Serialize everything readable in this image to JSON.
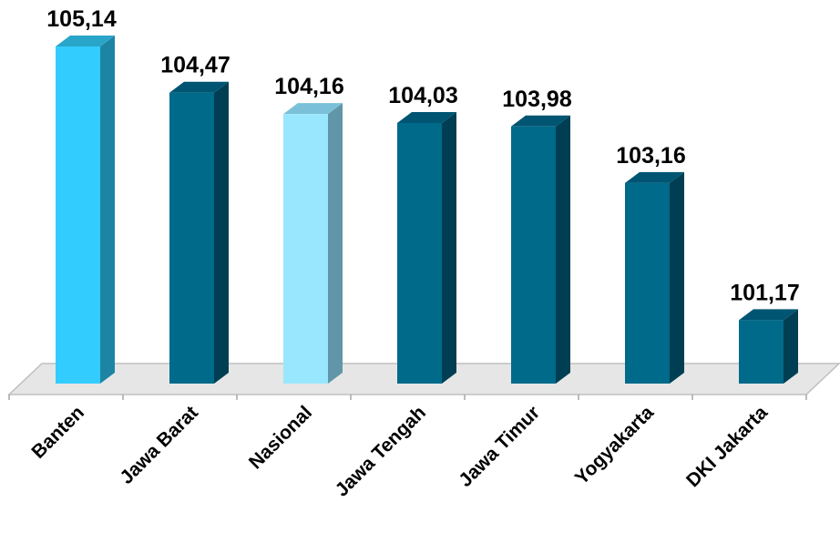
{
  "chart_data": {
    "type": "bar",
    "categories": [
      "Banten",
      "Jawa Barat",
      "Nasional",
      "Jawa Tengah",
      "Jawa Timur",
      "Yogyakarta",
      "DKI Jakarta"
    ],
    "values": [
      105.14,
      104.47,
      104.16,
      104.03,
      103.98,
      103.16,
      101.17
    ],
    "value_labels": [
      "105,14",
      "104,47",
      "104,16",
      "104,03",
      "103,98",
      "103,16",
      "101,17"
    ],
    "title": "",
    "xlabel": "",
    "ylabel": "",
    "ylim": [
      100.25,
      105.14
    ],
    "grid": false,
    "legend": "none",
    "style": "3d-column",
    "colors": [
      {
        "front": "#33ccff",
        "side": "#1d85a3",
        "top": "#29a5c9"
      },
      {
        "front": "#006a8a",
        "side": "#003f53",
        "top": "#005572"
      },
      {
        "front": "#99e6ff",
        "side": "#6096a8",
        "top": "#7ac0d8"
      },
      {
        "front": "#006a8a",
        "side": "#003f53",
        "top": "#005572"
      },
      {
        "front": "#006a8a",
        "side": "#003f53",
        "top": "#005572"
      },
      {
        "front": "#006a8a",
        "side": "#003f53",
        "top": "#005572"
      },
      {
        "front": "#006a8a",
        "side": "#003f53",
        "top": "#005572"
      }
    ],
    "floor_color": "#e6e6e6"
  }
}
